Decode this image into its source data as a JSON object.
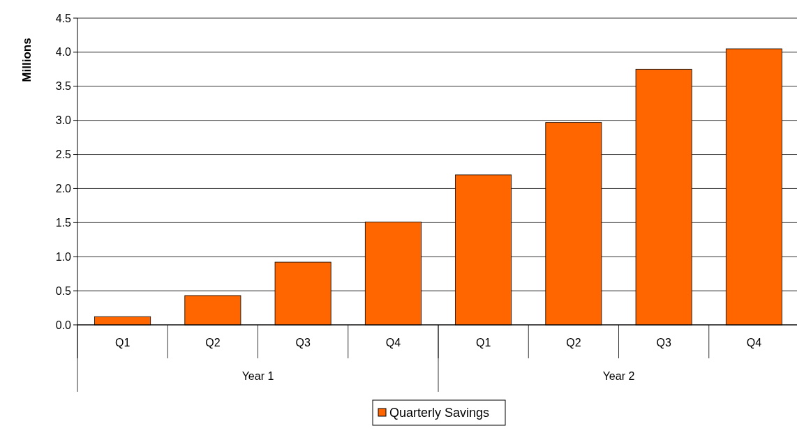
{
  "chart_data": {
    "type": "bar",
    "ylabel": "Millions",
    "categories": [
      "Q1",
      "Q2",
      "Q3",
      "Q4",
      "Q1",
      "Q2",
      "Q3",
      "Q4"
    ],
    "series": [
      {
        "name": "Quarterly Savings",
        "color": "#ff6600",
        "values": [
          0.12,
          0.43,
          0.92,
          1.51,
          2.2,
          2.97,
          3.75,
          4.05
        ]
      }
    ],
    "annotations": [
      "Year 1",
      "Year 2"
    ],
    "ylim": [
      0,
      4.5
    ],
    "yticks": [
      {
        "value": 0,
        "label": "0.0"
      },
      {
        "value": 0.5,
        "label": "0.5"
      },
      {
        "value": 1,
        "label": "1.0"
      },
      {
        "value": 1.5,
        "label": "1.5"
      },
      {
        "value": 2,
        "label": "2.0"
      },
      {
        "value": 2.5,
        "label": "2.5"
      },
      {
        "value": 3,
        "label": "3.0"
      },
      {
        "value": 3.5,
        "label": "3.5"
      },
      {
        "value": 4,
        "label": "4.0"
      },
      {
        "value": 4.5,
        "label": "4.5"
      }
    ],
    "grid": "y",
    "legend": "bottom"
  }
}
